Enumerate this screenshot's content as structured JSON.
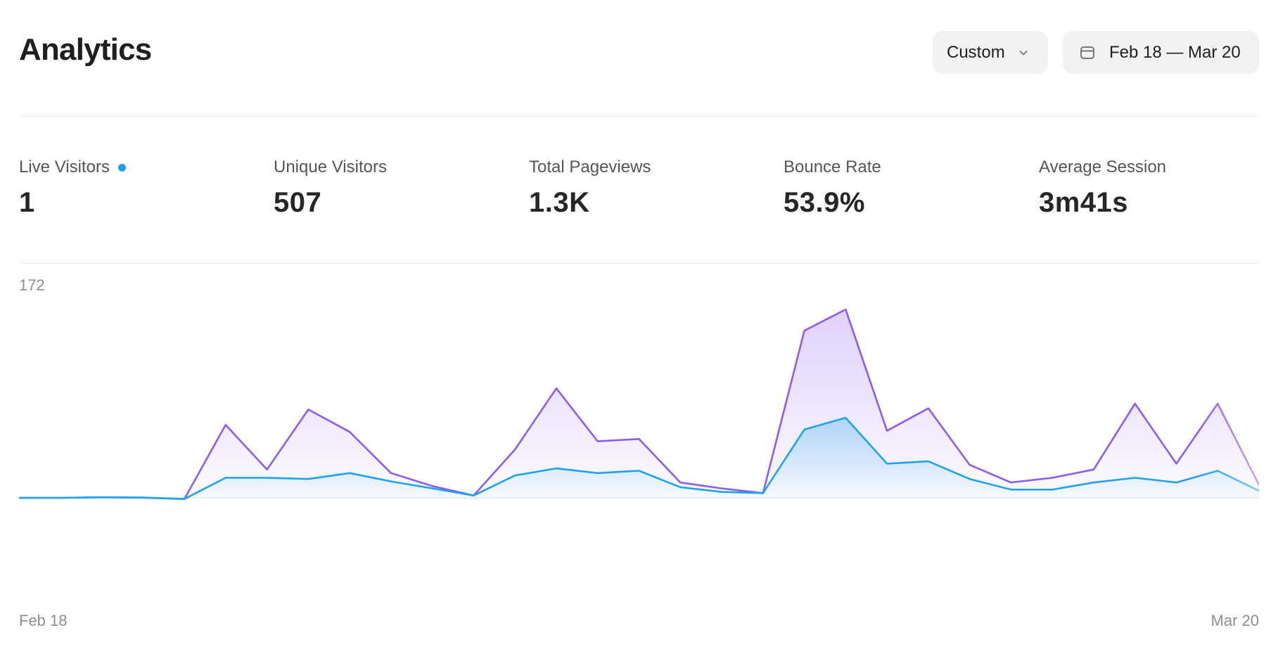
{
  "header": {
    "title": "Analytics",
    "range_select": {
      "label": "Custom",
      "icon": "chevron-down-icon"
    },
    "date_range": {
      "label": "Feb 18 — Mar 20",
      "icon": "calendar-icon"
    }
  },
  "stats": [
    {
      "label": "Live Visitors",
      "value": "1",
      "live": true
    },
    {
      "label": "Unique Visitors",
      "value": "507"
    },
    {
      "label": "Total Pageviews",
      "value": "1.3K"
    },
    {
      "label": "Bounce Rate",
      "value": "53.9%"
    },
    {
      "label": "Average Session",
      "value": "3m41s"
    }
  ],
  "colors": {
    "pageviews": "#8b5cf6",
    "visitors": "#1ea3f2",
    "live_dot": "#1fa0f5"
  },
  "chart_data": {
    "type": "area",
    "x_start_label": "Feb 18",
    "x_end_label": "Mar 20",
    "y_max_label": "172",
    "ylim": [
      0,
      172
    ],
    "series": [
      {
        "name": "Pageviews",
        "values": [
          0,
          0,
          0.5,
          0.2,
          -1,
          62,
          24,
          75,
          56,
          21,
          10,
          2,
          41,
          93,
          48,
          50,
          13,
          8,
          4,
          142,
          160,
          57,
          76,
          28,
          13,
          17,
          24,
          80,
          29,
          80,
          11
        ]
      },
      {
        "name": "Unique Visitors",
        "values": [
          0,
          0,
          0.5,
          0.2,
          -1,
          17,
          17,
          16,
          21,
          14,
          8,
          2,
          19,
          25,
          21,
          23,
          9,
          5,
          4,
          58,
          68,
          29,
          31,
          16,
          7,
          7,
          13,
          17,
          13,
          23,
          6
        ]
      }
    ]
  }
}
